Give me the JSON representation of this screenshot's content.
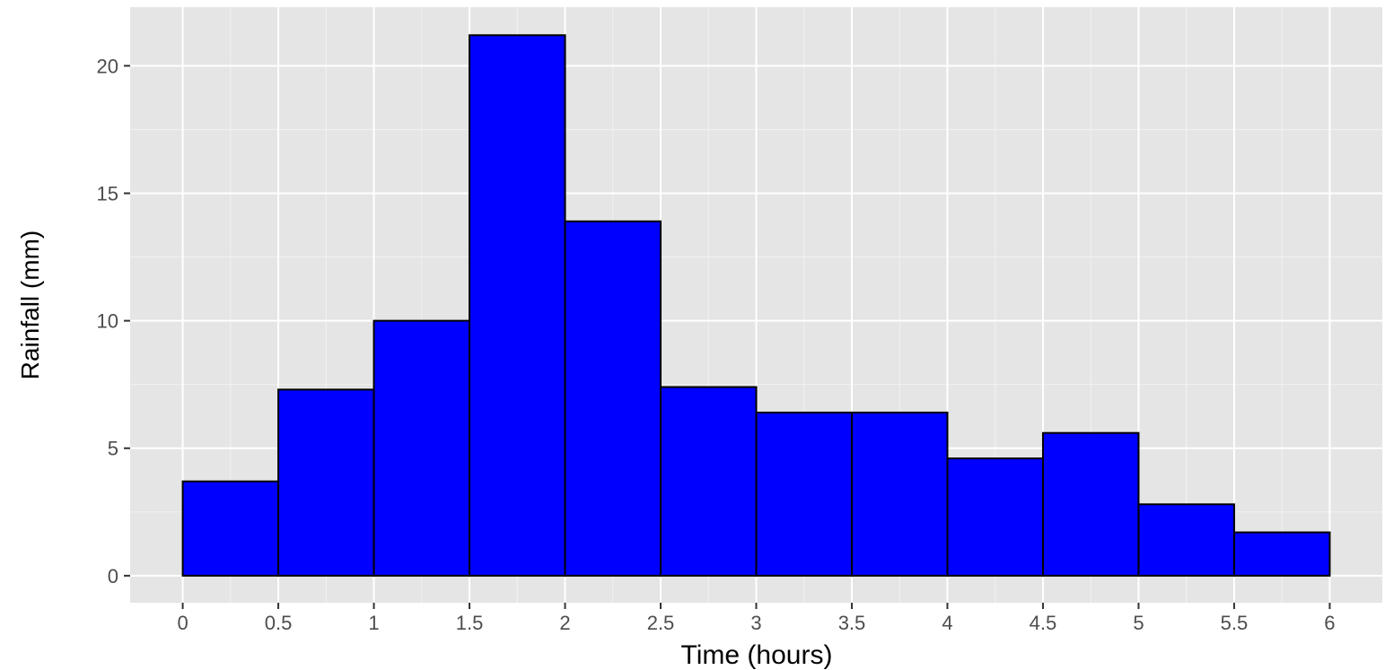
{
  "chart_data": {
    "type": "bar",
    "title": "",
    "xlabel": "Time (hours)",
    "ylabel": "Rainfall (mm)",
    "bin_width": 0.5,
    "x": [
      0,
      0.5,
      1,
      1.5,
      2,
      2.5,
      3,
      3.5,
      4,
      4.5,
      5,
      5.5
    ],
    "values": [
      3.7,
      7.3,
      10.0,
      21.2,
      13.9,
      7.4,
      6.4,
      6.4,
      4.6,
      5.6,
      2.8,
      1.7
    ],
    "x_ticks": [
      "0",
      "0.5",
      "1",
      "1.5",
      "2",
      "2.5",
      "3",
      "3.5",
      "4",
      "4.5",
      "5",
      "5.5",
      "6"
    ],
    "y_ticks": [
      "0",
      "5",
      "10",
      "15",
      "20"
    ],
    "xlim": [
      -0.275,
      6.275
    ],
    "ylim": [
      -1.06,
      22.3
    ],
    "grid": true,
    "legend": "none",
    "colors": {
      "bar_fill": "#0000ff",
      "bar_outline": "#000000",
      "panel_background": "#e5e5e5",
      "grid": "#ffffff"
    }
  }
}
